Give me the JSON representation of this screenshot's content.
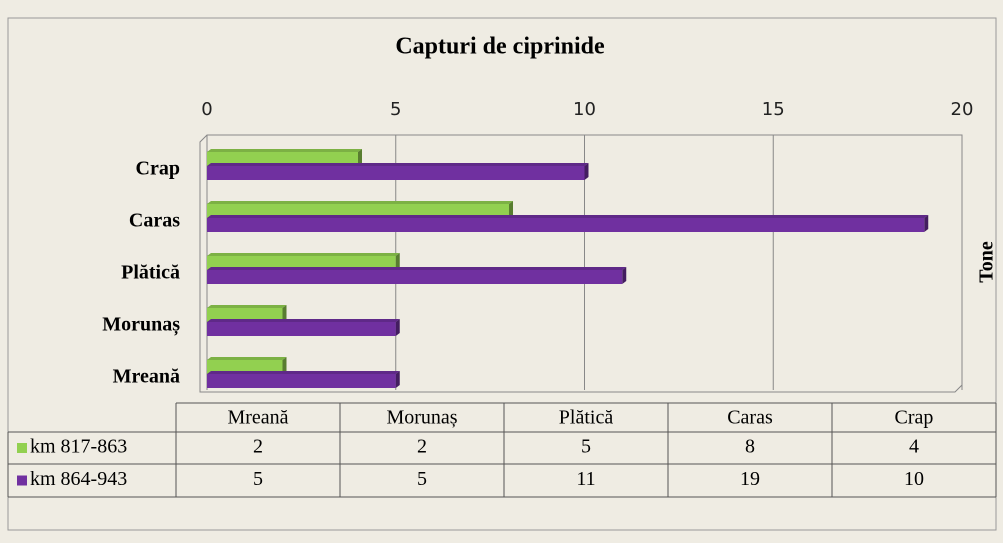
{
  "chart_data": {
    "type": "bar",
    "orientation": "horizontal",
    "title": "Capturi de ciprinide",
    "x_label": "Tone",
    "categories": [
      "Mreană",
      "Morunaș",
      "Plătică",
      "Caras",
      "Crap"
    ],
    "series": [
      {
        "name": "km 817-863",
        "color": "#92d050",
        "values": [
          2,
          2,
          5,
          8,
          4
        ]
      },
      {
        "name": "km 864-943",
        "color": "#7030a0",
        "values": [
          5,
          5,
          11,
          19,
          10
        ]
      }
    ],
    "xlim": [
      0,
      20
    ],
    "xticks": [
      0,
      5,
      10,
      15,
      20
    ],
    "grid": true,
    "data_table": true
  }
}
